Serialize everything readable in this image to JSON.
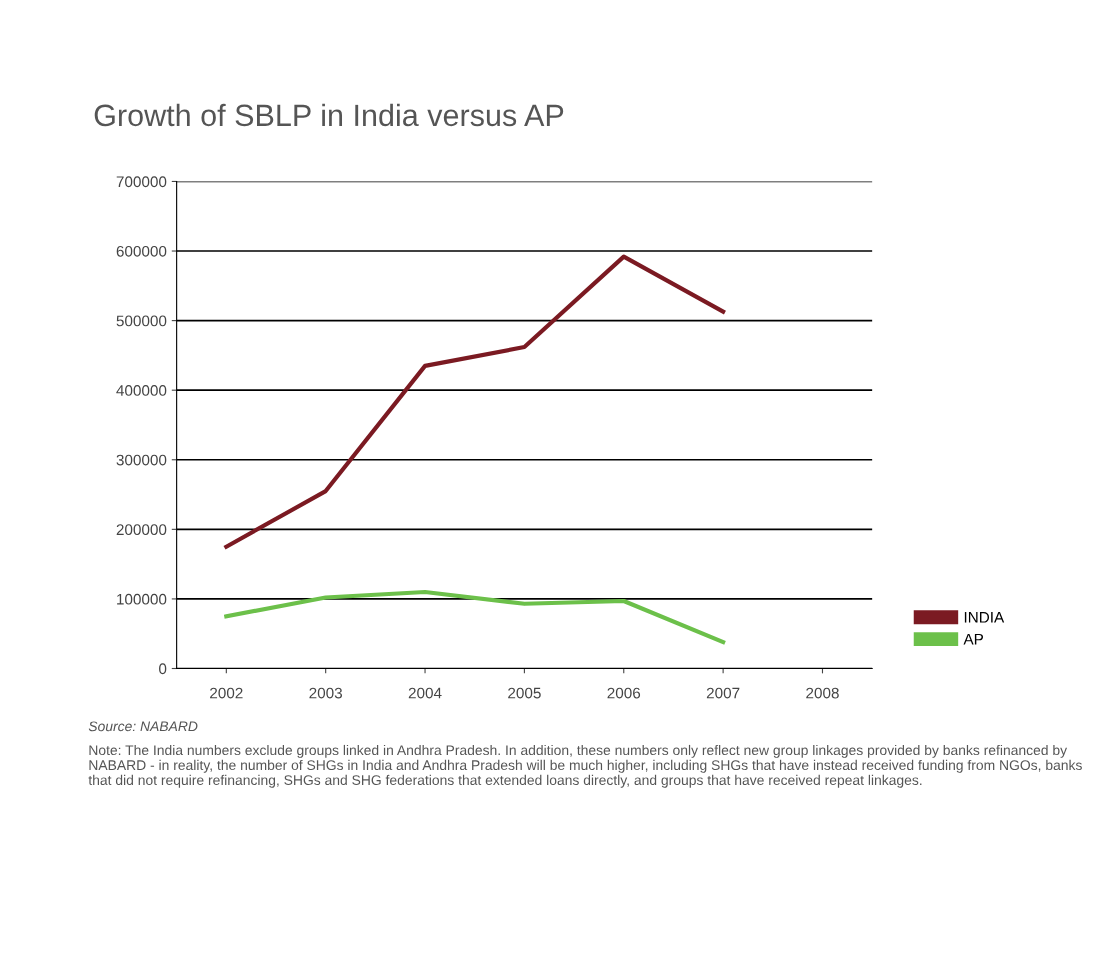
{
  "chart_data": {
    "type": "line",
    "title": "Growth of SBLP in India versus AP",
    "categories": [
      "2002",
      "2003",
      "2004",
      "2005",
      "2006",
      "2007",
      "2008"
    ],
    "series": [
      {
        "name": "INDIA",
        "color": "#7b1a22",
        "values": [
          175000,
          255000,
          435000,
          462000,
          592000,
          513000,
          null
        ]
      },
      {
        "name": "AP",
        "color": "#6cc04a",
        "values": [
          75000,
          102000,
          110000,
          93000,
          97000,
          38000,
          null
        ]
      }
    ],
    "ylim": [
      0,
      700000
    ],
    "yticks": [
      0,
      100000,
      200000,
      300000,
      400000,
      500000,
      600000,
      700000
    ],
    "grid": "y",
    "legend": "right",
    "marker": "none",
    "line_style": "solid",
    "annotations": [
      "Source: NABARD",
      "Note: The India numbers exclude groups linked in Andhra Pradesh. In addition, these numbers only reflect new group linkages provided by banks refinanced by NABARD - in reality, the number of SHGs in India and Andhra Pradesh will be much higher, including SHGs that have instead received funding from NGOs, banks that did not require refinancing, SHGs and SHG federations that extended loans directly, and groups that have received repeat linkages."
    ]
  }
}
